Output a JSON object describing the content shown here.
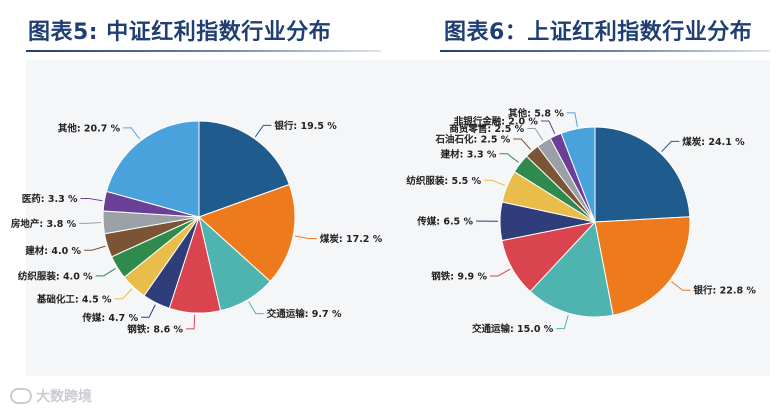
{
  "titles": {
    "left": "图表5: 中证红利指数行业分布",
    "right": "图表6：上证红利指数行业分布"
  },
  "watermark": "大数跨境",
  "chart_data": [
    {
      "type": "pie",
      "title": "图表5: 中证红利指数行业分布",
      "unit": "%",
      "slices": [
        {
          "label": "银行",
          "value": 19.5,
          "color": "#1f5b8c"
        },
        {
          "label": "煤炭",
          "value": 17.2,
          "color": "#ee7a1e"
        },
        {
          "label": "交通运输",
          "value": 9.7,
          "color": "#4fb3b0"
        },
        {
          "label": "钢铁",
          "value": 8.6,
          "color": "#d9444f"
        },
        {
          "label": "传媒",
          "value": 4.7,
          "color": "#2f3d7a"
        },
        {
          "label": "基础化工",
          "value": 4.5,
          "color": "#e8bd4a"
        },
        {
          "label": "纺织服装",
          "value": 4.0,
          "color": "#2f8a4e"
        },
        {
          "label": "建材",
          "value": 4.0,
          "color": "#7a5434"
        },
        {
          "label": "房地产",
          "value": 3.8,
          "color": "#9ba0a6"
        },
        {
          "label": "医药",
          "value": 3.3,
          "color": "#6a3f97"
        },
        {
          "label": "其他",
          "value": 20.7,
          "color": "#4aa2dd"
        }
      ]
    },
    {
      "type": "pie",
      "title": "图表6：上证红利指数行业分布",
      "unit": "%",
      "slices": [
        {
          "label": "煤炭",
          "value": 24.1,
          "color": "#1f5b8c"
        },
        {
          "label": "银行",
          "value": 22.8,
          "color": "#ee7a1e"
        },
        {
          "label": "交通运输",
          "value": 15.0,
          "color": "#4fb3b0"
        },
        {
          "label": "钢铁",
          "value": 9.9,
          "color": "#d9444f"
        },
        {
          "label": "传媒",
          "value": 6.5,
          "color": "#2f3d7a"
        },
        {
          "label": "纺织服装",
          "value": 5.5,
          "color": "#e8bd4a"
        },
        {
          "label": "建材",
          "value": 3.3,
          "color": "#2f8a4e"
        },
        {
          "label": "石油石化",
          "value": 2.5,
          "color": "#7a5434"
        },
        {
          "label": "商贸零售",
          "value": 2.5,
          "color": "#9ba0a6"
        },
        {
          "label": "非银行金融",
          "value": 2.0,
          "color": "#6a3f97"
        },
        {
          "label": "其他",
          "value": 5.8,
          "color": "#4aa2dd"
        }
      ]
    }
  ]
}
